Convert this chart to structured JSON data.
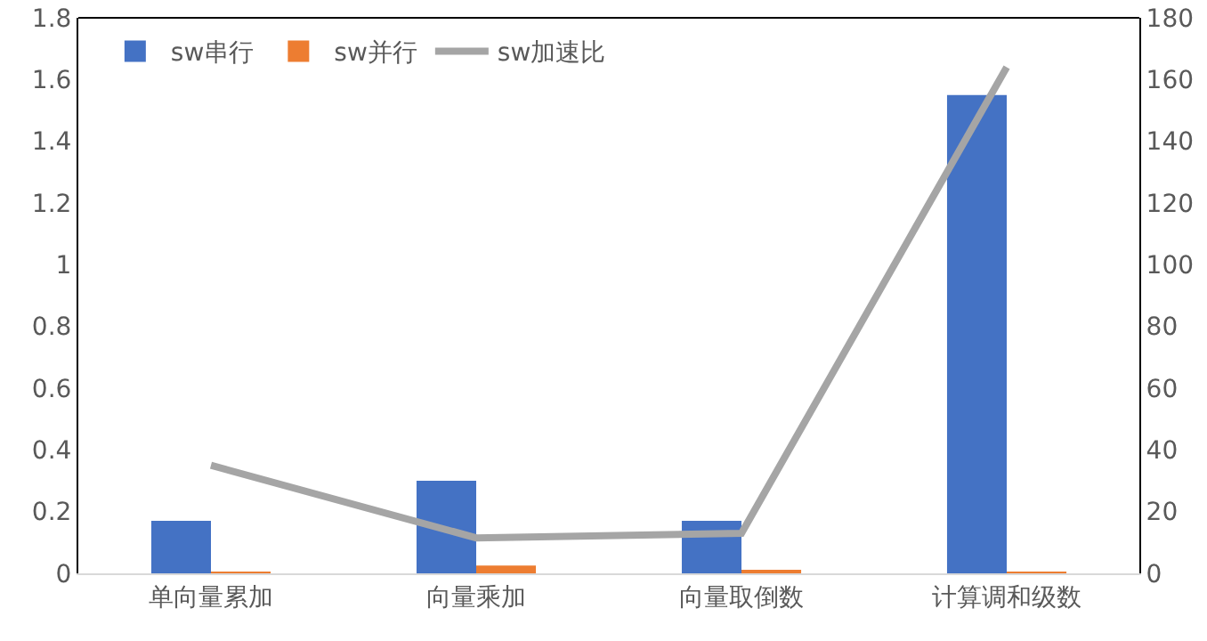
{
  "chart_data": {
    "type": "bar",
    "categories": [
      "单向量累加",
      "向量乘加",
      "向量取倒数",
      "计算调和级数"
    ],
    "series": [
      {
        "name": "sw串行",
        "color": "#4472c4",
        "values": [
          0.17,
          0.3,
          0.17,
          1.55
        ]
      },
      {
        "name": "sw并行",
        "color": "#ed7d31",
        "values": [
          0.002,
          0.025,
          0.01,
          0.005
        ]
      },
      {
        "name": "sw加速比",
        "type": "line",
        "axis": "y2",
        "color": "#a5a5a5",
        "values": [
          35,
          11.5,
          13,
          164
        ]
      }
    ],
    "ylim": [
      0,
      1.8
    ],
    "yticks": [
      0,
      0.2,
      0.4,
      0.6,
      0.8,
      1,
      1.2,
      1.4,
      1.6,
      1.8
    ],
    "y2lim": [
      0,
      180
    ],
    "y2ticks": [
      0,
      20,
      40,
      60,
      80,
      100,
      120,
      140,
      160,
      180
    ],
    "grid": false,
    "legend": "top left",
    "marker": "none",
    "line_style": "solid"
  }
}
